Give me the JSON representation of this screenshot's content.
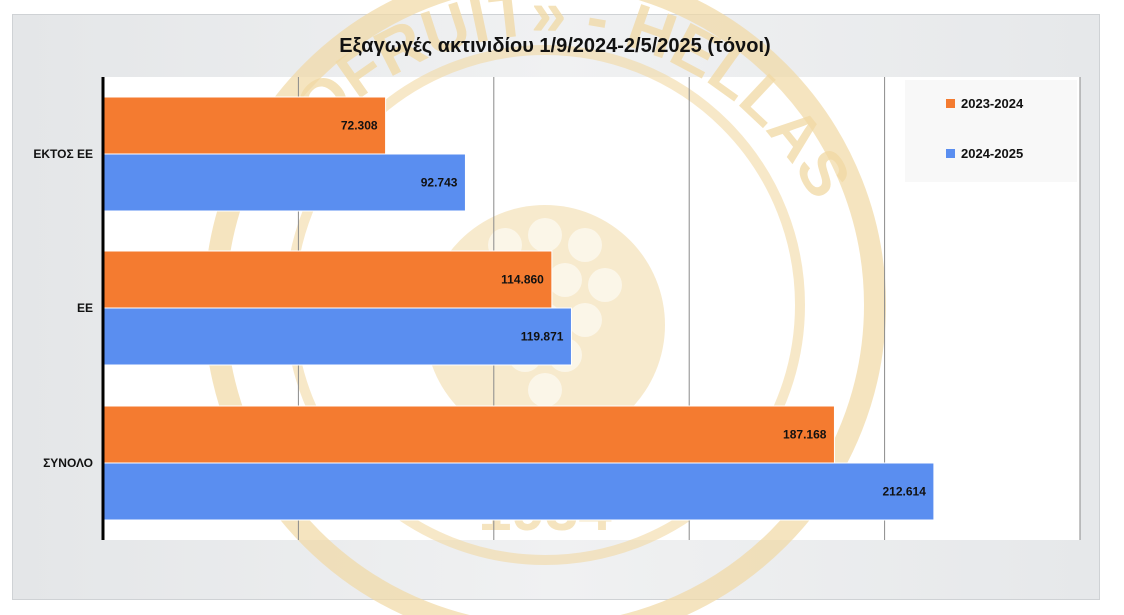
{
  "chart_data": {
    "type": "bar",
    "orientation": "horizontal",
    "title": "Εξαγωγές ακτινιδίου 1/9/2024-2/5/2025 (τόνοι)",
    "categories": [
      "ΕΚΤΟΣ ΕΕ",
      "ΕΕ",
      "ΣΥΝΟΛΟ"
    ],
    "series": [
      {
        "name": "2023-2024",
        "values": [
          72308,
          114860,
          187168
        ],
        "labels": [
          "72.308",
          "114.860",
          "187.168"
        ],
        "color": "#f47b30"
      },
      {
        "name": "2024-2025",
        "values": [
          92743,
          119871,
          212614
        ],
        "labels": [
          "92.743",
          "119.871",
          "212.614"
        ],
        "color": "#5a8ef0"
      }
    ],
    "xlim": [
      0,
      250000
    ],
    "grid": true,
    "legend_position": "top-right"
  },
  "watermark": {
    "text": "«COFRUIT» - HELLAS",
    "year": "1934",
    "color": "#f1d9a4"
  }
}
